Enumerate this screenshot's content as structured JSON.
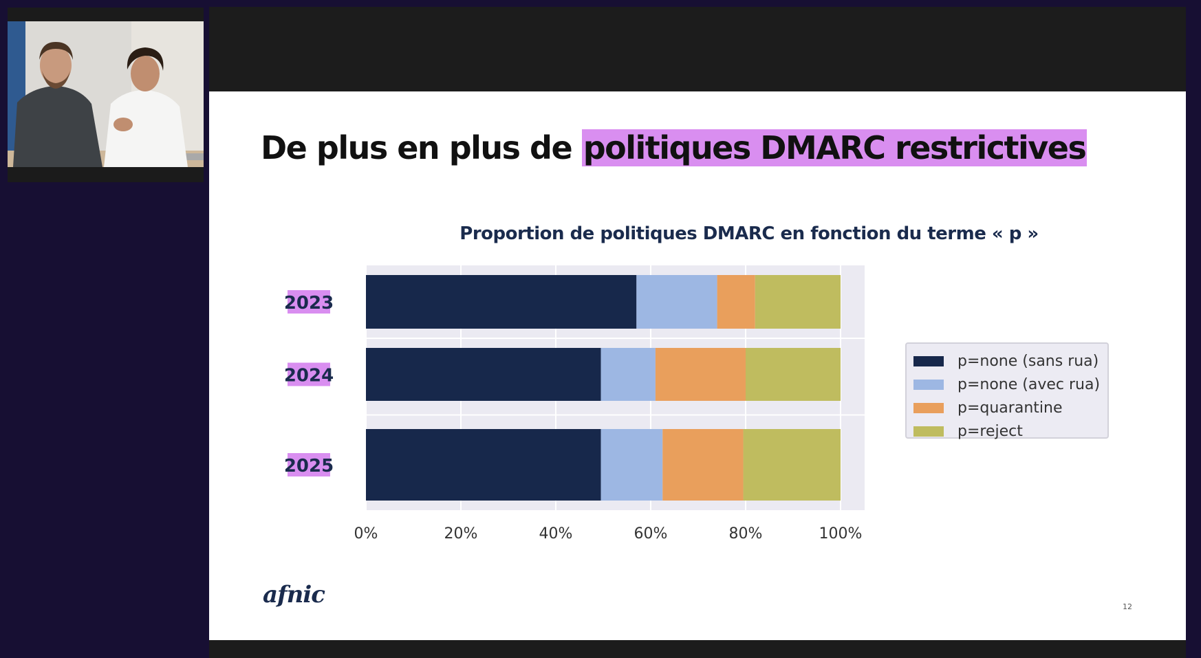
{
  "slide": {
    "title_plain": "De plus en plus de ",
    "title_highlight": "politiques DMARC restrictives",
    "logo": "afnic",
    "page_number": "12"
  },
  "colors": {
    "background": "#170f33",
    "title_highlight": "#d98ef0",
    "plot_background": "#ebeaf2"
  },
  "chart_data": {
    "type": "bar",
    "orientation": "horizontal",
    "stacked": true,
    "title": "Proportion de politiques DMARC en fonction du terme « p »",
    "categories": [
      "2023",
      "2024",
      "2025"
    ],
    "series": [
      {
        "name": "p=none (sans rua)",
        "color": "#17284b",
        "values": [
          57,
          49.5,
          49.5
        ]
      },
      {
        "name": "p=none (avec rua)",
        "color": "#9db7e3",
        "values": [
          17,
          11.5,
          13
        ]
      },
      {
        "name": "p=quarantine",
        "color": "#e99f5c",
        "values": [
          8,
          19,
          17
        ]
      },
      {
        "name": "p=reject",
        "color": "#bfbc5f",
        "values": [
          18,
          20,
          20.5
        ]
      }
    ],
    "xticks": [
      "0%",
      "20%",
      "40%",
      "60%",
      "80%",
      "100%"
    ],
    "xlim": [
      0,
      100
    ],
    "grid": true,
    "legend_position": "right"
  }
}
